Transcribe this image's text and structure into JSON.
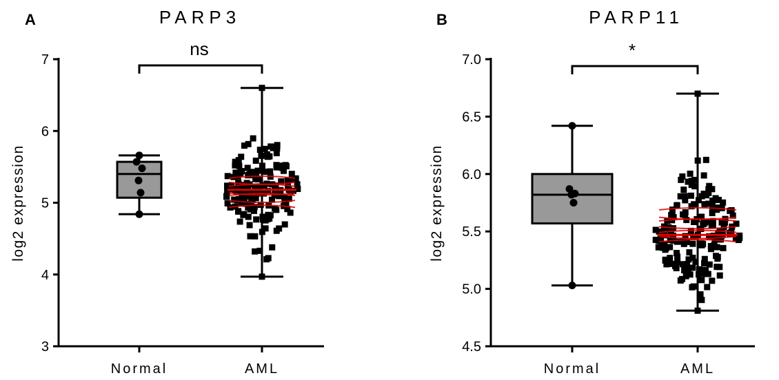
{
  "chart_data": [
    {
      "type": "box",
      "panel": "A",
      "title": "PARP3",
      "ylabel": "log2 expression",
      "ylim": [
        3,
        7
      ],
      "yticks": [
        "3",
        "4",
        "5",
        "6",
        "7"
      ],
      "categories": [
        "Normal",
        "AML"
      ],
      "significance": "ns",
      "grid": false,
      "boxes": [
        {
          "category": "Normal",
          "min": 4.84,
          "q1": 5.07,
          "median": 5.4,
          "q3": 5.57,
          "max": 5.66,
          "points": [
            5.66,
            5.57,
            5.48,
            5.31,
            5.14,
            4.84
          ],
          "point_shape": "circle"
        },
        {
          "category": "AML",
          "min": 3.97,
          "q1": 4.92,
          "median": 5.18,
          "q3": 5.38,
          "max": 6.6,
          "n_points_approx": 180,
          "point_shape": "square"
        }
      ]
    },
    {
      "type": "box",
      "panel": "B",
      "title": "PARP11",
      "ylabel": "log2 expression",
      "ylim": [
        4.5,
        7.0
      ],
      "yticks": [
        "4.5",
        "5.0",
        "5.5",
        "6.0",
        "6.5",
        "7.0"
      ],
      "categories": [
        "Normal",
        "AML"
      ],
      "significance": "*",
      "grid": false,
      "boxes": [
        {
          "category": "Normal",
          "min": 5.03,
          "q1": 5.57,
          "median": 5.82,
          "q3": 6.0,
          "max": 6.42,
          "points": [
            6.42,
            5.87,
            5.83,
            5.82,
            5.75,
            5.03
          ],
          "point_shape": "circle"
        },
        {
          "category": "AML",
          "min": 4.81,
          "q1": 5.38,
          "median": 5.47,
          "q3": 5.7,
          "max": 6.7,
          "n_points_approx": 180,
          "point_shape": "square"
        }
      ]
    }
  ],
  "colors": {
    "box_fill": "#999999",
    "axis": "#000000",
    "points": "#000000",
    "dense_median_highlight": "#e00000"
  }
}
